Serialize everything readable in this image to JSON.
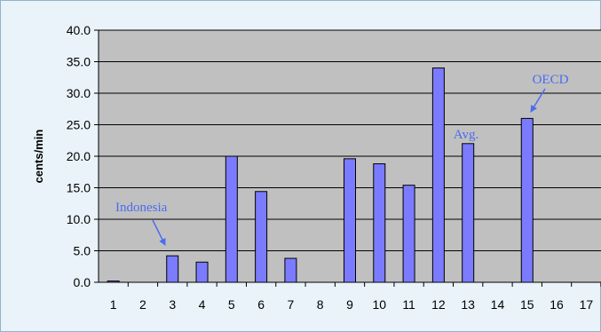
{
  "chart_data": {
    "type": "bar",
    "categories": [
      "1",
      "2",
      "3",
      "4",
      "5",
      "6",
      "7",
      "8",
      "9",
      "10",
      "11",
      "12",
      "13",
      "14",
      "15",
      "16",
      "17"
    ],
    "values": [
      0.2,
      0,
      4.2,
      3.2,
      20.0,
      14.4,
      3.8,
      0,
      19.6,
      18.8,
      15.4,
      34.0,
      22.0,
      0,
      26.0,
      0,
      0
    ],
    "title": "",
    "xlabel": "",
    "ylabel": "cents/min",
    "ylim": [
      0,
      40
    ],
    "yticks": [
      "0.0",
      "5.0",
      "10.0",
      "15.0",
      "20.0",
      "25.0",
      "30.0",
      "35.0",
      "40.0"
    ],
    "grid": true,
    "legend": "none",
    "annotations": [
      {
        "text": "Indonesia",
        "category": "3"
      },
      {
        "text": "Avg.",
        "category": "13"
      },
      {
        "text": "OECD",
        "category": "15"
      }
    ],
    "colors": {
      "bar": "#7b7bff",
      "plot_background": "#c0c0c0",
      "frame_background": "#e9f3f9",
      "annotation": "#4a6cf0"
    }
  }
}
